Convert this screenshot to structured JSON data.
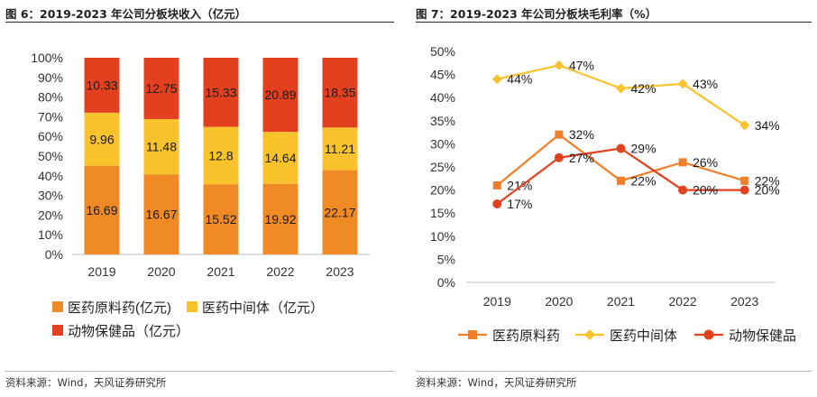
{
  "left": {
    "title": "图 6：2019-2023 年公司分板块收入（亿元）",
    "source": "资料来源：Wind，天风证券研究所"
  },
  "right": {
    "title": "图 7：2019-2023 年公司分板块毛利率（%）",
    "source": "资料来源：Wind，天风证券研究所"
  },
  "chart_data": [
    {
      "type": "bar",
      "stacked_percent": true,
      "categories": [
        "2019",
        "2020",
        "2021",
        "2022",
        "2023"
      ],
      "series": [
        {
          "name": "医药原料药(亿元)",
          "values": [
            16.69,
            16.67,
            15.52,
            19.92,
            22.17
          ],
          "color": "#F08A24"
        },
        {
          "name": "医药中间体（亿元）",
          "values": [
            9.96,
            11.48,
            12.8,
            14.64,
            11.21
          ],
          "color": "#FAC22B"
        },
        {
          "name": "动物保健品（亿元）",
          "values": [
            10.33,
            12.75,
            15.33,
            20.89,
            18.35
          ],
          "color": "#E2401F"
        }
      ],
      "y_ticks": [
        "0%",
        "10%",
        "20%",
        "30%",
        "40%",
        "50%",
        "60%",
        "70%",
        "80%",
        "90%",
        "100%"
      ],
      "ylim": [
        0,
        100
      ],
      "legend": "bottom"
    },
    {
      "type": "line",
      "categories": [
        "2019",
        "2020",
        "2021",
        "2022",
        "2023"
      ],
      "series": [
        {
          "name": "医药原料药",
          "values": [
            21,
            32,
            22,
            26,
            22
          ],
          "labels": [
            "21%",
            "32%",
            "22%",
            "26%",
            "22%"
          ],
          "color": "#F07F2A",
          "marker": "square"
        },
        {
          "name": "医药中间体",
          "values": [
            44,
            47,
            42,
            43,
            34
          ],
          "labels": [
            "44%",
            "47%",
            "42%",
            "43%",
            "34%"
          ],
          "color": "#FAC22B",
          "marker": "diamond"
        },
        {
          "name": "动物保健品",
          "values": [
            17,
            27,
            29,
            20,
            20
          ],
          "labels": [
            "17%",
            "27%",
            "29%",
            "20%",
            "20%"
          ],
          "color": "#E2401F",
          "marker": "circle"
        }
      ],
      "y_ticks": [
        "0%",
        "5%",
        "10%",
        "15%",
        "20%",
        "25%",
        "30%",
        "35%",
        "40%",
        "45%",
        "50%"
      ],
      "ylim": [
        0,
        50
      ],
      "legend": "bottom"
    }
  ]
}
